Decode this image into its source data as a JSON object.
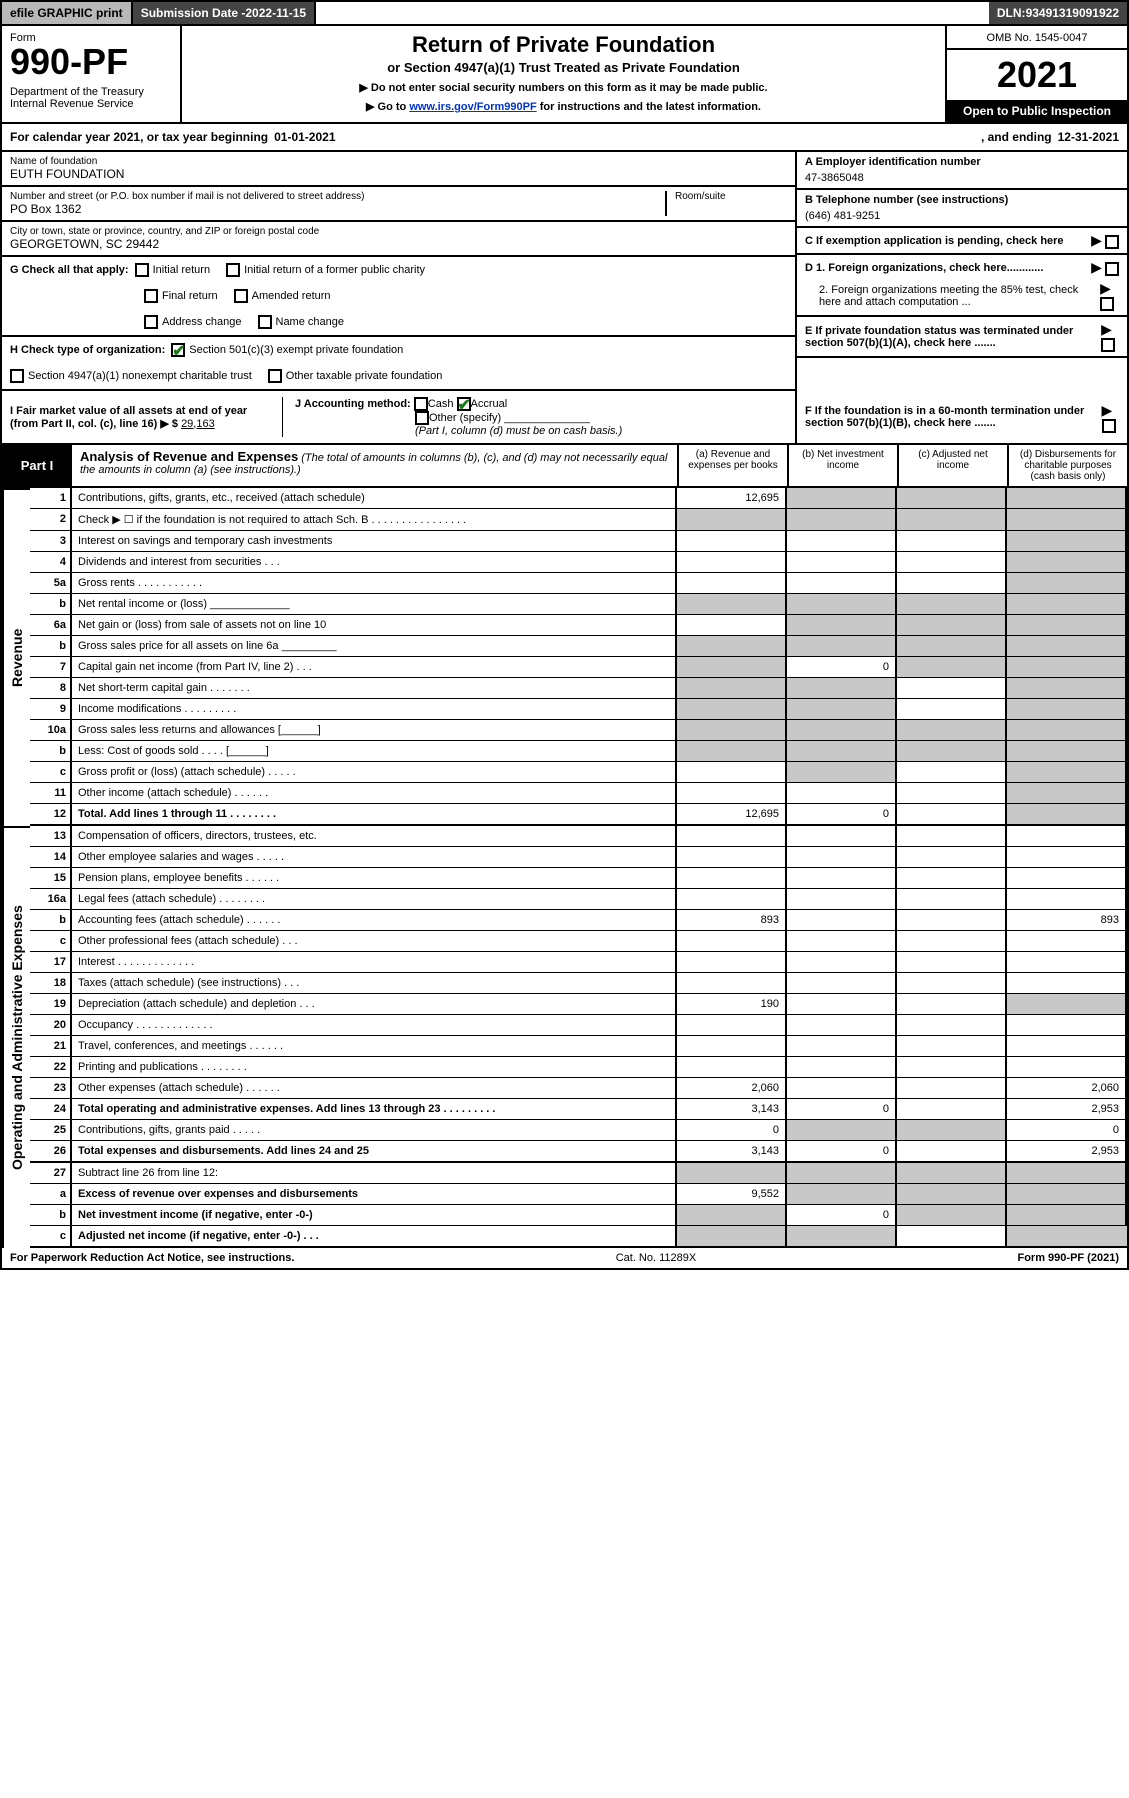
{
  "top": {
    "efile": "efile GRAPHIC print",
    "subdate_label": "Submission Date - ",
    "subdate": "2022-11-15",
    "dln_label": "DLN: ",
    "dln": "93491319091922"
  },
  "header": {
    "form_label": "Form",
    "form_num": "990-PF",
    "dept": "Department of the Treasury\nInternal Revenue Service",
    "title": "Return of Private Foundation",
    "subtitle": "or Section 4947(a)(1) Trust Treated as Private Foundation",
    "note1": "▶ Do not enter social security numbers on this form as it may be made public.",
    "note2_pre": "▶ Go to ",
    "note2_link": "www.irs.gov/Form990PF",
    "note2_post": " for instructions and the latest information.",
    "omb": "OMB No. 1545-0047",
    "year": "2021",
    "inspect": "Open to Public Inspection"
  },
  "calyear": {
    "prefix": "For calendar year 2021, or tax year beginning ",
    "begin": "01-01-2021",
    "mid": ", and ending ",
    "end": "12-31-2021"
  },
  "info": {
    "name_label": "Name of foundation",
    "name": "EUTH FOUNDATION",
    "street_label": "Number and street (or P.O. box number if mail is not delivered to street address)",
    "street": "PO Box 1362",
    "room_label": "Room/suite",
    "room": "",
    "city_label": "City or town, state or province, country, and ZIP or foreign postal code",
    "city": "GEORGETOWN, SC  29442",
    "A_label": "A Employer identification number",
    "A": "47-3865048",
    "B_label": "B Telephone number (see instructions)",
    "B": "(646) 481-9251",
    "C_label": "C If exemption application is pending, check here",
    "D1": "D 1. Foreign organizations, check here............",
    "D2": "2. Foreign organizations meeting the 85% test, check here and attach computation ...",
    "E": "E If private foundation status was terminated under section 507(b)(1)(A), check here .......",
    "F": "F If the foundation is in a 60-month termination under section 507(b)(1)(B), check here .......",
    "G_label": "G Check all that apply:",
    "G_opts": [
      "Initial return",
      "Initial return of a former public charity",
      "Final return",
      "Amended return",
      "Address change",
      "Name change"
    ],
    "H_label": "H Check type of organization:",
    "H_opts": [
      "Section 501(c)(3) exempt private foundation",
      "Section 4947(a)(1) nonexempt charitable trust",
      "Other taxable private foundation"
    ],
    "I_label": "I Fair market value of all assets at end of year (from Part II, col. (c), line 16) ▶ $",
    "I_val": "29,163",
    "J_label": "J Accounting method:",
    "J_cash": "Cash",
    "J_accr": "Accrual",
    "J_other": "Other (specify)",
    "J_note": "(Part I, column (d) must be on cash basis.)"
  },
  "part1": {
    "tag": "Part I",
    "title": "Analysis of Revenue and Expenses",
    "title_note": " (The total of amounts in columns (b), (c), and (d) may not necessarily equal the amounts in column (a) (see instructions).)",
    "colA": "(a) Revenue and expenses per books",
    "colB": "(b) Net investment income",
    "colC": "(c) Adjusted net income",
    "colD": "(d) Disbursements for charitable purposes (cash basis only)"
  },
  "sections": {
    "revenue": "Revenue",
    "opadmin": "Operating and Administrative Expenses"
  },
  "rows": [
    {
      "n": "1",
      "d": "Contributions, gifts, grants, etc., received (attach schedule)",
      "a": "12,695",
      "b": "",
      "c": "",
      "dd": "",
      "shadeB": true,
      "shadeC": true,
      "shadeD": true
    },
    {
      "n": "2",
      "d": "Check ▶ ☐ if the foundation is not required to attach Sch. B    .  .  .  .  .  .  .  .  .  .  .  .  .  .  .  .",
      "a": "",
      "b": "",
      "c": "",
      "dd": "",
      "shadeA": true,
      "shadeB": true,
      "shadeC": true,
      "shadeD": true
    },
    {
      "n": "3",
      "d": "Interest on savings and temporary cash investments",
      "a": "",
      "b": "",
      "c": "",
      "dd": "",
      "shadeD": true
    },
    {
      "n": "4",
      "d": "Dividends and interest from securities    .  .  .",
      "a": "",
      "b": "",
      "c": "",
      "dd": "",
      "shadeD": true
    },
    {
      "n": "5a",
      "d": "Gross rents    .  .  .  .  .  .  .  .  .  .  .",
      "a": "",
      "b": "",
      "c": "",
      "dd": "",
      "shadeD": true
    },
    {
      "n": "b",
      "d": "Net rental income or (loss)  _____________",
      "a": "",
      "b": "",
      "c": "",
      "dd": "",
      "shadeA": true,
      "shadeB": true,
      "shadeC": true,
      "shadeD": true
    },
    {
      "n": "6a",
      "d": "Net gain or (loss) from sale of assets not on line 10",
      "a": "",
      "b": "",
      "c": "",
      "dd": "",
      "shadeB": true,
      "shadeC": true,
      "shadeD": true
    },
    {
      "n": "b",
      "d": "Gross sales price for all assets on line 6a _________",
      "a": "",
      "b": "",
      "c": "",
      "dd": "",
      "shadeA": true,
      "shadeB": true,
      "shadeC": true,
      "shadeD": true
    },
    {
      "n": "7",
      "d": "Capital gain net income (from Part IV, line 2)   .  .  .",
      "a": "",
      "b": "0",
      "c": "",
      "dd": "",
      "shadeA": true,
      "shadeC": true,
      "shadeD": true
    },
    {
      "n": "8",
      "d": "Net short-term capital gain   .  .  .  .  .  .  .",
      "a": "",
      "b": "",
      "c": "",
      "dd": "",
      "shadeA": true,
      "shadeB": true,
      "shadeD": true
    },
    {
      "n": "9",
      "d": "Income modifications  .  .  .  .  .  .  .  .  .",
      "a": "",
      "b": "",
      "c": "",
      "dd": "",
      "shadeA": true,
      "shadeB": true,
      "shadeD": true
    },
    {
      "n": "10a",
      "d": "Gross sales less returns and allowances  [______]",
      "a": "",
      "b": "",
      "c": "",
      "dd": "",
      "shadeA": true,
      "shadeB": true,
      "shadeC": true,
      "shadeD": true
    },
    {
      "n": "b",
      "d": "Less: Cost of goods sold    .  .  .  .    [______]",
      "a": "",
      "b": "",
      "c": "",
      "dd": "",
      "shadeA": true,
      "shadeB": true,
      "shadeC": true,
      "shadeD": true
    },
    {
      "n": "c",
      "d": "Gross profit or (loss) (attach schedule)    .  .  .  .  .",
      "a": "",
      "b": "",
      "c": "",
      "dd": "",
      "shadeB": true,
      "shadeD": true
    },
    {
      "n": "11",
      "d": "Other income (attach schedule)    .  .  .  .  .  .",
      "a": "",
      "b": "",
      "c": "",
      "dd": "",
      "shadeD": true
    },
    {
      "n": "12",
      "d": "Total. Add lines 1 through 11   .  .  .  .  .  .  .  .",
      "a": "12,695",
      "b": "0",
      "c": "",
      "dd": "",
      "bold": true,
      "thick": true,
      "shadeD": true
    },
    {
      "n": "13",
      "d": "Compensation of officers, directors, trustees, etc.",
      "a": "",
      "b": "",
      "c": "",
      "dd": ""
    },
    {
      "n": "14",
      "d": "Other employee salaries and wages   .  .  .  .  .",
      "a": "",
      "b": "",
      "c": "",
      "dd": ""
    },
    {
      "n": "15",
      "d": "Pension plans, employee benefits  .  .  .  .  .  .",
      "a": "",
      "b": "",
      "c": "",
      "dd": ""
    },
    {
      "n": "16a",
      "d": "Legal fees (attach schedule) .  .  .  .  .  .  .  .",
      "a": "",
      "b": "",
      "c": "",
      "dd": ""
    },
    {
      "n": "b",
      "d": "Accounting fees (attach schedule) .  .  .  .  .  .",
      "a": "893",
      "b": "",
      "c": "",
      "dd": "893"
    },
    {
      "n": "c",
      "d": "Other professional fees (attach schedule)   .  .  .",
      "a": "",
      "b": "",
      "c": "",
      "dd": ""
    },
    {
      "n": "17",
      "d": "Interest  .  .  .  .  .  .  .  .  .  .  .  .  .",
      "a": "",
      "b": "",
      "c": "",
      "dd": ""
    },
    {
      "n": "18",
      "d": "Taxes (attach schedule) (see instructions)    .  .  .",
      "a": "",
      "b": "",
      "c": "",
      "dd": ""
    },
    {
      "n": "19",
      "d": "Depreciation (attach schedule) and depletion   .  .  .",
      "a": "190",
      "b": "",
      "c": "",
      "dd": "",
      "shadeD": true
    },
    {
      "n": "20",
      "d": "Occupancy .  .  .  .  .  .  .  .  .  .  .  .  .",
      "a": "",
      "b": "",
      "c": "",
      "dd": ""
    },
    {
      "n": "21",
      "d": "Travel, conferences, and meetings  .  .  .  .  .  .",
      "a": "",
      "b": "",
      "c": "",
      "dd": ""
    },
    {
      "n": "22",
      "d": "Printing and publications  .  .  .  .  .  .  .  .",
      "a": "",
      "b": "",
      "c": "",
      "dd": ""
    },
    {
      "n": "23",
      "d": "Other expenses (attach schedule)  .  .  .  .  .  .",
      "a": "2,060",
      "b": "",
      "c": "",
      "dd": "2,060"
    },
    {
      "n": "24",
      "d": "Total operating and administrative expenses. Add lines 13 through 23   .  .  .  .  .  .  .  .  .",
      "a": "3,143",
      "b": "0",
      "c": "",
      "dd": "2,953",
      "bold": true
    },
    {
      "n": "25",
      "d": "Contributions, gifts, grants paid    .  .  .  .  .",
      "a": "0",
      "b": "",
      "c": "",
      "dd": "0",
      "shadeB": true,
      "shadeC": true
    },
    {
      "n": "26",
      "d": "Total expenses and disbursements. Add lines 24 and 25",
      "a": "3,143",
      "b": "0",
      "c": "",
      "dd": "2,953",
      "bold": true,
      "thick": true
    },
    {
      "n": "27",
      "d": "Subtract line 26 from line 12:",
      "a": "",
      "b": "",
      "c": "",
      "dd": "",
      "shadeA": true,
      "shadeB": true,
      "shadeC": true,
      "shadeD": true
    },
    {
      "n": "a",
      "d": "Excess of revenue over expenses and disbursements",
      "a": "9,552",
      "b": "",
      "c": "",
      "dd": "",
      "bold": true,
      "shadeB": true,
      "shadeC": true,
      "shadeD": true
    },
    {
      "n": "b",
      "d": "Net investment income (if negative, enter -0-)",
      "a": "",
      "b": "0",
      "c": "",
      "dd": "",
      "bold": true,
      "shadeA": true,
      "shadeC": true,
      "shadeD": true
    },
    {
      "n": "c",
      "d": "Adjusted net income (if negative, enter -0-)   .  .  .",
      "a": "",
      "b": "",
      "c": "",
      "dd": "",
      "bold": true,
      "shadeA": true,
      "shadeB": true,
      "shadeD": true,
      "thick": true
    }
  ],
  "footer": {
    "left": "For Paperwork Reduction Act Notice, see instructions.",
    "mid": "Cat. No. 11289X",
    "right": "Form 990-PF (2021)"
  },
  "colors": {
    "shade": "#c8c8c8",
    "dark": "#444444",
    "check": "#1a7a1a"
  }
}
